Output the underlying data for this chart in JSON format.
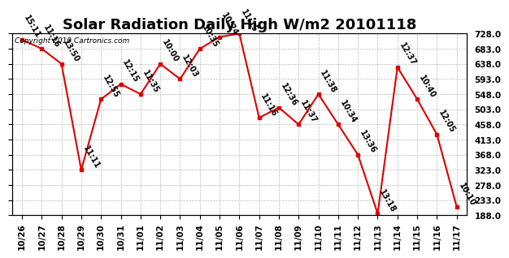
{
  "title": "Solar Radiation Daily High W/m2 20101118",
  "copyright": "Copyright 2010 Cartronics.com",
  "dates": [
    "10/26",
    "10/27",
    "10/28",
    "10/29",
    "10/30",
    "10/31",
    "11/01",
    "11/02",
    "11/03",
    "11/04",
    "11/05",
    "11/06",
    "11/07",
    "11/08",
    "11/09",
    "11/10",
    "11/11",
    "11/12",
    "11/13",
    "11/14",
    "11/15",
    "11/16",
    "11/17"
  ],
  "values": [
    710,
    683,
    638,
    323,
    533,
    578,
    548,
    638,
    593,
    683,
    718,
    728,
    478,
    508,
    458,
    548,
    458,
    368,
    193,
    628,
    533,
    428,
    213
  ],
  "times": [
    "15:11",
    "11:16",
    "13:50",
    "11:11",
    "12:55",
    "12:15",
    "11:35",
    "10:00",
    "12:03",
    "10:35",
    "10:24",
    "11:15",
    "11:16",
    "12:36",
    "11:37",
    "11:38",
    "10:34",
    "13:36",
    "13:18",
    "12:37",
    "10:40",
    "12:05",
    "10:10"
  ],
  "line_color": "#dd0000",
  "marker_color": "#dd0000",
  "bg_color": "#ffffff",
  "grid_color": "#bbbbbb",
  "plot_bg": "#ffffff",
  "yticks": [
    188.0,
    233.0,
    278.0,
    323.0,
    368.0,
    413.0,
    458.0,
    503.0,
    548.0,
    593.0,
    638.0,
    683.0,
    728.0
  ],
  "ylim": [
    188.0,
    728.0
  ],
  "title_fontsize": 13,
  "label_fontsize": 7,
  "tick_fontsize": 7.5,
  "copyright_fontsize": 6.5
}
